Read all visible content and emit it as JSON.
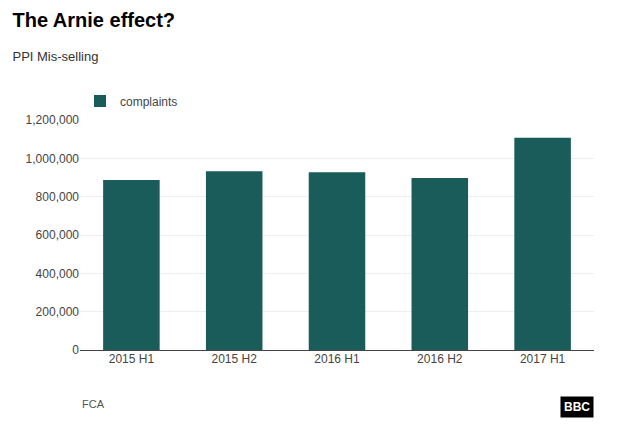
{
  "chart_data": {
    "type": "bar",
    "title": "The Arnie effect?",
    "subtitle": "PPI Mis-selling",
    "categories": [
      "2015 H1",
      "2015 H2",
      "2016 H1",
      "2016 H2",
      "2017 H1"
    ],
    "series": [
      {
        "name": "complaints",
        "color": "#1a5c5a",
        "values": [
          887000,
          932000,
          928000,
          898000,
          1108000
        ]
      }
    ],
    "ylim": [
      0,
      1200000
    ],
    "yticks": [
      0,
      {
        "value": 200000,
        "label": "200,000"
      },
      {
        "value": 400000,
        "label": "400,000"
      },
      {
        "value": 600000,
        "label": "600,000"
      },
      {
        "value": 800000,
        "label": "800,000"
      },
      {
        "value": 1000000,
        "label": "1,000,000"
      },
      {
        "value": 1200000,
        "label": "1,200,000"
      }
    ],
    "grid": true,
    "legend": "upper left",
    "annotations": [
      "FCA",
      "BBC"
    ]
  }
}
